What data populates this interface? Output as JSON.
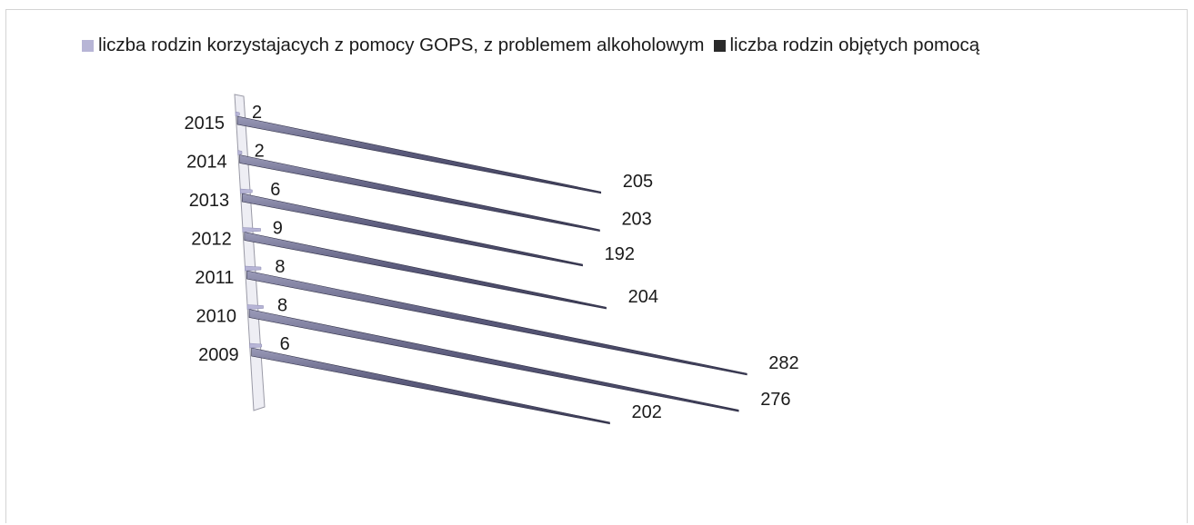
{
  "chart_data": {
    "type": "bar",
    "orientation": "horizontal",
    "three_d": true,
    "categories": [
      "2015",
      "2014",
      "2013",
      "2012",
      "2011",
      "2010",
      "2009"
    ],
    "series": [
      {
        "name": "liczba rodzin korzystajacych z pomocy GOPS, z problemem alkoholowym",
        "values": [
          2,
          2,
          6,
          9,
          8,
          8,
          6
        ],
        "color": "#b7b5d6"
      },
      {
        "name": "liczba rodzin objętych pomocą",
        "values": [
          205,
          203,
          192,
          204,
          282,
          276,
          202
        ],
        "color": "#3c3c5a"
      }
    ],
    "legend_position": "top",
    "grid": false,
    "xlim": [
      0,
      300
    ]
  }
}
